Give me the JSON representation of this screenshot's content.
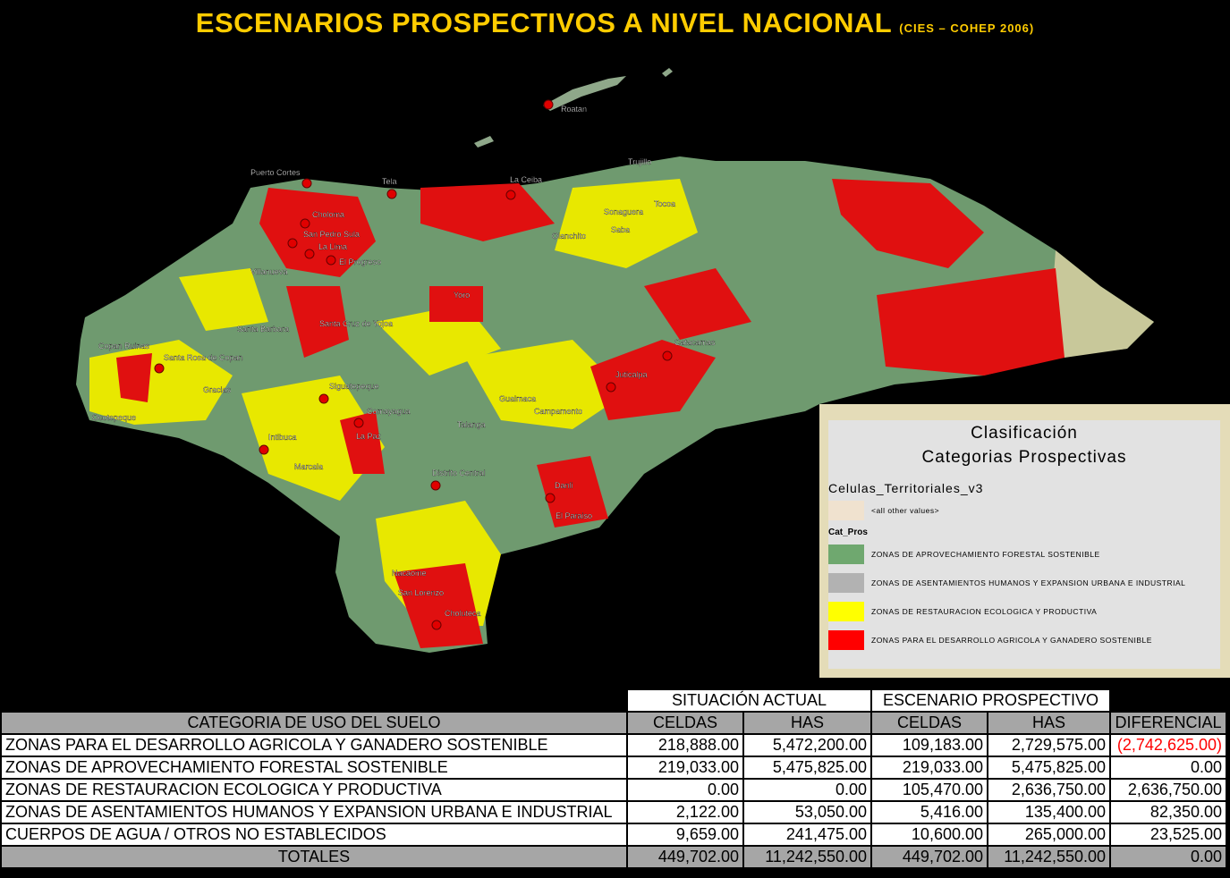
{
  "header": {
    "title": "ESCENARIOS PROSPECTIVOS A NIVEL NACIONAL",
    "source": "(CIES – COHEP 2006)"
  },
  "map": {
    "cities": [
      "Roatan",
      "Trujillo",
      "Puerto Cortes",
      "Tela",
      "La Ceiba",
      "Tocoa",
      "Sonaguera",
      "Saba",
      "Olanchito",
      "Choloma",
      "San Pedro Sula",
      "La Lima",
      "El Progreso",
      "Villanueva",
      "Yoro",
      "Santa Barbara",
      "Santa Cruz de Yojoa",
      "Copan Ruinas",
      "Santa Rosa de Copan",
      "Catacamas",
      "Gracias",
      "Siguatepeque",
      "Juticalpa",
      "Guaimaca",
      "Comayagua",
      "Campamento",
      "Ocotepeque",
      "Intibuca",
      "La Paz",
      "Talanga",
      "Marcala",
      "Distrito Central",
      "Danli",
      "El Paraiso",
      "Nacaome",
      "San Lorenzo",
      "Choluteca"
    ]
  },
  "legend": {
    "title_line1": "Clasificación",
    "title_line2": "Categorias Prospectivas",
    "layer": "Celulas_Territoriales_v3",
    "other": {
      "label": "<all other values>",
      "color": "#f0e2cf"
    },
    "group": "Cat_Pros",
    "items": [
      {
        "label": "ZONAS DE APROVECHAMIENTO FORESTAL SOSTENIBLE",
        "color": "#6fa86f"
      },
      {
        "label": "ZONAS DE ASENTAMIENTOS HUMANOS Y EXPANSION URBANA E INDUSTRIAL",
        "color": "#b2b2b2"
      },
      {
        "label": "ZONAS DE RESTAURACION ECOLOGICA Y PRODUCTIVA",
        "color": "#ffff00"
      },
      {
        "label": "ZONAS PARA EL DESARROLLO AGRICOLA Y GANADERO SOSTENIBLE",
        "color": "#ff0000"
      }
    ]
  },
  "table": {
    "groups": [
      "SITUACIÓN ACTUAL",
      "ESCENARIO PROSPECTIVO"
    ],
    "columns": [
      "CATEGORIA DE USO DEL SUELO",
      "CELDAS",
      "HAS",
      "CELDAS",
      "HAS",
      "DIFERENCIAL"
    ],
    "rows": [
      [
        "ZONAS PARA EL DESARROLLO AGRICOLA Y GANADERO SOSTENIBLE",
        "218,888.00",
        "5,472,200.00",
        "109,183.00",
        "2,729,575.00",
        "(2,742,625.00)"
      ],
      [
        "ZONAS DE APROVECHAMIENTO FORESTAL SOSTENIBLE",
        "219,033.00",
        "5,475,825.00",
        "219,033.00",
        "5,475,825.00",
        "0.00"
      ],
      [
        "ZONAS DE RESTAURACION ECOLOGICA Y PRODUCTIVA",
        "0.00",
        "0.00",
        "105,470.00",
        "2,636,750.00",
        "2,636,750.00"
      ],
      [
        "ZONAS DE ASENTAMIENTOS HUMANOS Y EXPANSION URBANA E INDUSTRIAL",
        "2,122.00",
        "53,050.00",
        "5,416.00",
        "135,400.00",
        "82,350.00"
      ],
      [
        "CUERPOS DE AGUA / OTROS NO ESTABLECIDOS",
        "9,659.00",
        "241,475.00",
        "10,600.00",
        "265,000.00",
        "23,525.00"
      ]
    ],
    "totals": [
      "TOTALES",
      "449,702.00",
      "11,242,550.00",
      "449,702.00",
      "11,242,550.00",
      "0.00"
    ]
  }
}
